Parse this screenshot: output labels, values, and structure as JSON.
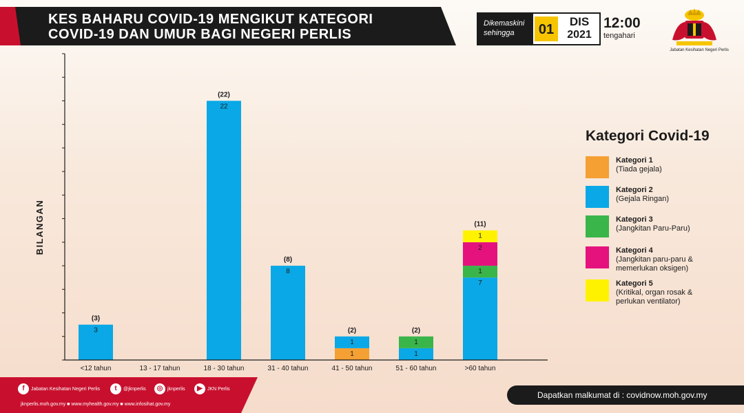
{
  "header": {
    "title_line1": "KES BAHARU COVID-19 MENGIKUT KATEGORI",
    "title_line2": "COVID-19 DAN UMUR BAGI NEGERI PERLIS",
    "update_label_1": "Dikemaskini",
    "update_label_2": "sehingga",
    "day": "01",
    "month": "DIS",
    "year": "2021",
    "time": "12:00",
    "time_sub": "tengahari",
    "dept": "Jabatan Kesihatan Negeri Perlis"
  },
  "legend": {
    "title": "Kategori Covid-19",
    "items": [
      {
        "name": "Kategori 1",
        "desc": "(Tiada gejala)",
        "color": "#f5a033"
      },
      {
        "name": "Kategori 2",
        "desc": "(Gejala Ringan)",
        "color": "#0aa8e6"
      },
      {
        "name": "Kategori 3",
        "desc": "(Jangkitan Paru-Paru)",
        "color": "#3ab54a"
      },
      {
        "name": "Kategori 4",
        "desc": "(Jangkitan paru-paru & memerlukan oksigen)",
        "color": "#e5127d"
      },
      {
        "name": "Kategori 5",
        "desc": "(Kritikal, organ rosak & perlukan ventilator)",
        "color": "#fff200"
      }
    ]
  },
  "chart_data": {
    "type": "bar",
    "stacked": true,
    "ylabel": "BILANGAN",
    "ylim": [
      0,
      26
    ],
    "categories": [
      "<12 tahun",
      "13 - 17 tahun",
      "18 - 30 tahun",
      "31 - 40 tahun",
      "41 - 50 tahun",
      "51 - 60 tahun",
      ">60 tahun"
    ],
    "totals": [
      3,
      0,
      22,
      8,
      2,
      2,
      11
    ],
    "series": [
      {
        "name": "Kategori 1",
        "color": "#f5a033",
        "values": [
          0,
          0,
          0,
          0,
          1,
          0,
          0
        ]
      },
      {
        "name": "Kategori 2",
        "color": "#0aa8e6",
        "values": [
          3,
          0,
          22,
          8,
          1,
          1,
          7
        ]
      },
      {
        "name": "Kategori 3",
        "color": "#3ab54a",
        "values": [
          0,
          0,
          0,
          0,
          0,
          1,
          1
        ]
      },
      {
        "name": "Kategori 4",
        "color": "#e5127d",
        "values": [
          0,
          0,
          0,
          0,
          0,
          0,
          2
        ]
      },
      {
        "name": "Kategori 5",
        "color": "#fff200",
        "values": [
          0,
          0,
          0,
          0,
          0,
          0,
          1
        ]
      }
    ]
  },
  "footer": {
    "facebook": "Jabatan Kesihatan Negeri Perlis",
    "twitter": "@jknperlis",
    "instagram": "jknperlis",
    "youtube": "JKN Perlis",
    "weblinks": "jknperlis.moh.gov.my ■ www.myhealth.gov.my ■ www.infosihat.gov.my",
    "info": "Dapatkan malkumat di : covidnow.moh.gov.my"
  }
}
